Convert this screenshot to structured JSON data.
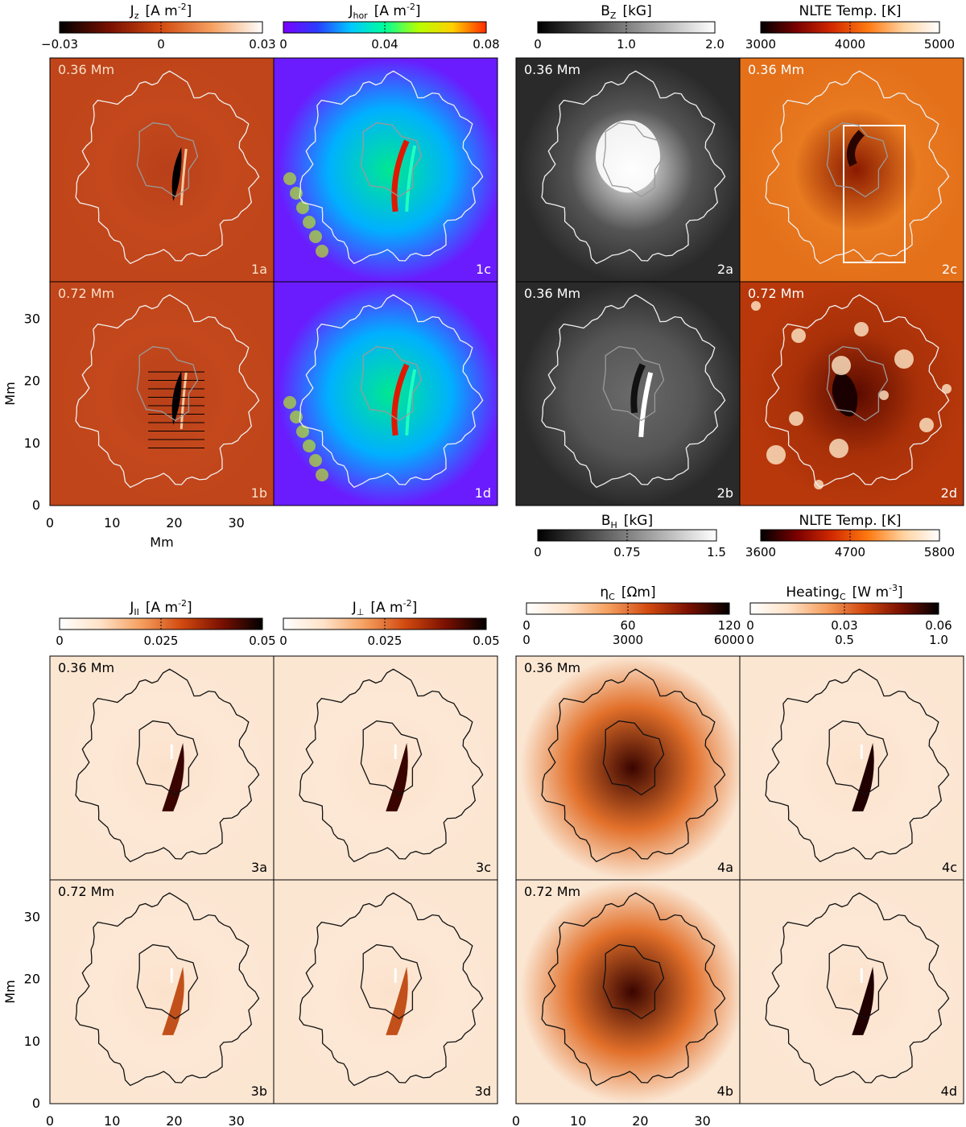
{
  "units": {
    "mm": "Mm"
  },
  "colorbars": [
    {
      "id": "cb-jz",
      "title": "J",
      "sub": "z",
      "unit": "[A m",
      "sup": "-2",
      "close": "]",
      "ticks": [
        "−0.03",
        "0",
        "0.03"
      ],
      "ticks2": [],
      "map": "rdbu",
      "pos": "top"
    },
    {
      "id": "cb-jhor",
      "title": "J",
      "sub": "hor",
      "unit": "[A m",
      "sup": "-2",
      "close": "]",
      "ticks": [
        "0",
        "0.04",
        "0.08"
      ],
      "ticks2": [],
      "map": "rainbow",
      "pos": "top"
    },
    {
      "id": "cb-bz",
      "title": "B",
      "sub": "Z",
      "unit": "[kG]",
      "sup": "",
      "close": "",
      "ticks": [
        "0",
        "1.0",
        "2.0"
      ],
      "ticks2": [],
      "map": "gray",
      "pos": "top"
    },
    {
      "id": "cb-nlte1",
      "title": "NLTE Temp. [K]",
      "sub": "",
      "unit": "",
      "sup": "",
      "close": "",
      "ticks": [
        "3000",
        "4000",
        "5000"
      ],
      "ticks2": [],
      "map": "heat",
      "pos": "top"
    },
    {
      "id": "cb-bh",
      "title": "B",
      "sub": "H",
      "unit": "[kG]",
      "sup": "",
      "close": "",
      "ticks": [
        "0",
        "0.75",
        "1.5"
      ],
      "ticks2": [],
      "map": "gray",
      "pos": "bottom"
    },
    {
      "id": "cb-nlte2",
      "title": "NLTE Temp. [K]",
      "sub": "",
      "unit": "",
      "sup": "",
      "close": "",
      "ticks": [
        "3600",
        "4700",
        "5800"
      ],
      "ticks2": [],
      "map": "heat",
      "pos": "bottom"
    },
    {
      "id": "cb-jpar",
      "title": "J",
      "sub": "II",
      "unit": "[A m",
      "sup": "-2",
      "close": "]",
      "ticks": [
        "0",
        "0.025",
        "0.05"
      ],
      "ticks2": [],
      "map": "orange",
      "pos": "top"
    },
    {
      "id": "cb-jperp",
      "title": "J",
      "sub": "⊥",
      "unit": "[A m",
      "sup": "-2",
      "close": "]",
      "ticks": [
        "0",
        "0.025",
        "0.05"
      ],
      "ticks2": [],
      "map": "orange",
      "pos": "top"
    },
    {
      "id": "cb-eta",
      "title": "η",
      "sub": "C",
      "unit": "[Ωm]",
      "sup": "",
      "close": "",
      "ticks": [
        "0",
        "60",
        "120"
      ],
      "ticks2": [
        "0",
        "3000",
        "6000"
      ],
      "map": "orange",
      "pos": "top"
    },
    {
      "id": "cb-heat",
      "title": "Heating",
      "sub": "C",
      "unit": "[W m",
      "sup": "-3",
      "close": "]",
      "ticks": [
        "0",
        "0.03",
        "0.06"
      ],
      "ticks2": [
        "0",
        "0.5",
        "1.0"
      ],
      "map": "orange",
      "pos": "top"
    }
  ],
  "panels": [
    {
      "id": "p1a",
      "label": "1a",
      "height": "0.36 Mm",
      "map": "rdbu",
      "contour": "white",
      "feature": "dark-streak",
      "fclr": "#f9e0c8"
    },
    {
      "id": "p1c",
      "label": "1c",
      "height": "",
      "map": "rainbow",
      "contour": "white",
      "feature": "red-streak",
      "fclr": "#fff"
    },
    {
      "id": "p2a",
      "label": "2a",
      "height": "0.36 Mm",
      "map": "gray",
      "contour": "white",
      "feature": "bright-core",
      "fclr": "#fff"
    },
    {
      "id": "p2c",
      "label": "2c",
      "height": "0.36 Mm",
      "map": "heat",
      "contour": "white",
      "feature": "box",
      "fclr": "#fff"
    },
    {
      "id": "p1b",
      "label": "1b",
      "height": "0.72 Mm",
      "map": "rdbu",
      "contour": "white",
      "feature": "lines",
      "fclr": "#f9e0c8"
    },
    {
      "id": "p1d",
      "label": "1d",
      "height": "",
      "map": "rainbow",
      "contour": "white",
      "feature": "red-streak",
      "fclr": "#fff"
    },
    {
      "id": "p2b",
      "label": "2b",
      "height": "0.36 Mm",
      "map": "gray",
      "contour": "white",
      "feature": "bh",
      "fclr": "#fff"
    },
    {
      "id": "p2d",
      "label": "2d",
      "height": "0.72 Mm",
      "map": "heat2",
      "contour": "white",
      "feature": "dark-core",
      "fclr": "#fff"
    },
    {
      "id": "p3a",
      "label": "3a",
      "height": "0.36 Mm",
      "map": "orange",
      "contour": "black",
      "feature": "streak",
      "fclr": "#000"
    },
    {
      "id": "p3c",
      "label": "3c",
      "height": "",
      "map": "orange",
      "contour": "black",
      "feature": "streak",
      "fclr": "#000"
    },
    {
      "id": "p4a",
      "label": "4a",
      "height": "0.36 Mm",
      "map": "orange",
      "contour": "black",
      "feature": "blob",
      "fclr": "#000"
    },
    {
      "id": "p4c",
      "label": "4c",
      "height": "",
      "map": "orange",
      "contour": "black",
      "feature": "streak-small",
      "fclr": "#000"
    },
    {
      "id": "p3b",
      "label": "3b",
      "height": "0.72 Mm",
      "map": "orange",
      "contour": "black",
      "feature": "streak-faint",
      "fclr": "#000"
    },
    {
      "id": "p3d",
      "label": "3d",
      "height": "",
      "map": "orange",
      "contour": "black",
      "feature": "streak-faint",
      "fclr": "#000"
    },
    {
      "id": "p4b",
      "label": "4b",
      "height": "0.72 Mm",
      "map": "orange",
      "contour": "black",
      "feature": "blob",
      "fclr": "#000"
    },
    {
      "id": "p4d",
      "label": "4d",
      "height": "",
      "map": "orange",
      "contour": "black",
      "feature": "streak-small",
      "fclr": "#000"
    }
  ],
  "axes": {
    "ylabel": "Mm",
    "xlabel": "Mm",
    "yticks": [
      "0",
      "10",
      "20",
      "30"
    ],
    "xticks": [
      "0",
      "10",
      "20",
      "30"
    ],
    "range": [
      0,
      36
    ]
  },
  "colors": {
    "rainbow": [
      "#7a00ff",
      "#2a3cff",
      "#00c8ff",
      "#00ff9a",
      "#b6ff00",
      "#ffd000",
      "#ff2a00"
    ],
    "heat": [
      "#000000",
      "#7a0000",
      "#d22a00",
      "#ff7a10",
      "#ffd2a0",
      "#ffffff"
    ],
    "orange": [
      "#ffffff",
      "#ffe2c8",
      "#f5a060",
      "#d24a10",
      "#7a1000",
      "#000000"
    ],
    "gray": [
      "#000000",
      "#ffffff"
    ],
    "rdbu": [
      "#000000",
      "#7a1000",
      "#d24a10",
      "#f5a060",
      "#ffffff"
    ]
  }
}
